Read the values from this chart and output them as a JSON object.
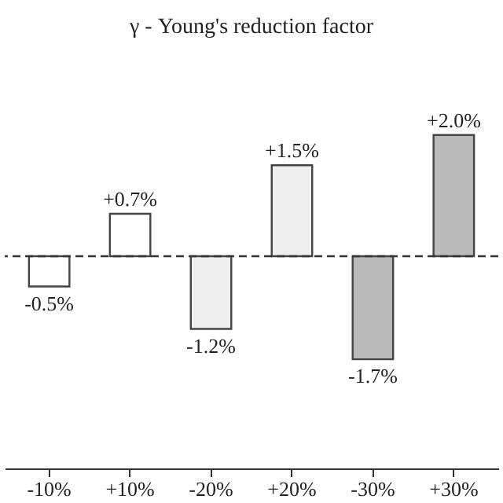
{
  "chart_data": {
    "type": "bar",
    "title": "γ - Young's reduction factor",
    "categories": [
      "-10%",
      "+10%",
      "-20%",
      "+20%",
      "-30%",
      "+30%"
    ],
    "values": [
      -0.5,
      0.7,
      -1.2,
      1.5,
      -1.7,
      2.0
    ],
    "colors": [
      "#ffffff",
      "#ffffff",
      "#eeeeee",
      "#eeeeee",
      "#bbbbbb",
      "#bbbbbb"
    ],
    "value_labels": [
      "-0.5%",
      "+0.7%",
      "-1.2%",
      "+1.5%",
      "-1.7%",
      "+2.0%"
    ],
    "tick_labels": "x",
    "grid": false,
    "ref_lines": [
      {
        "axis": "y",
        "value": 0,
        "line_style": "dashed",
        "color": "#333333"
      }
    ]
  }
}
